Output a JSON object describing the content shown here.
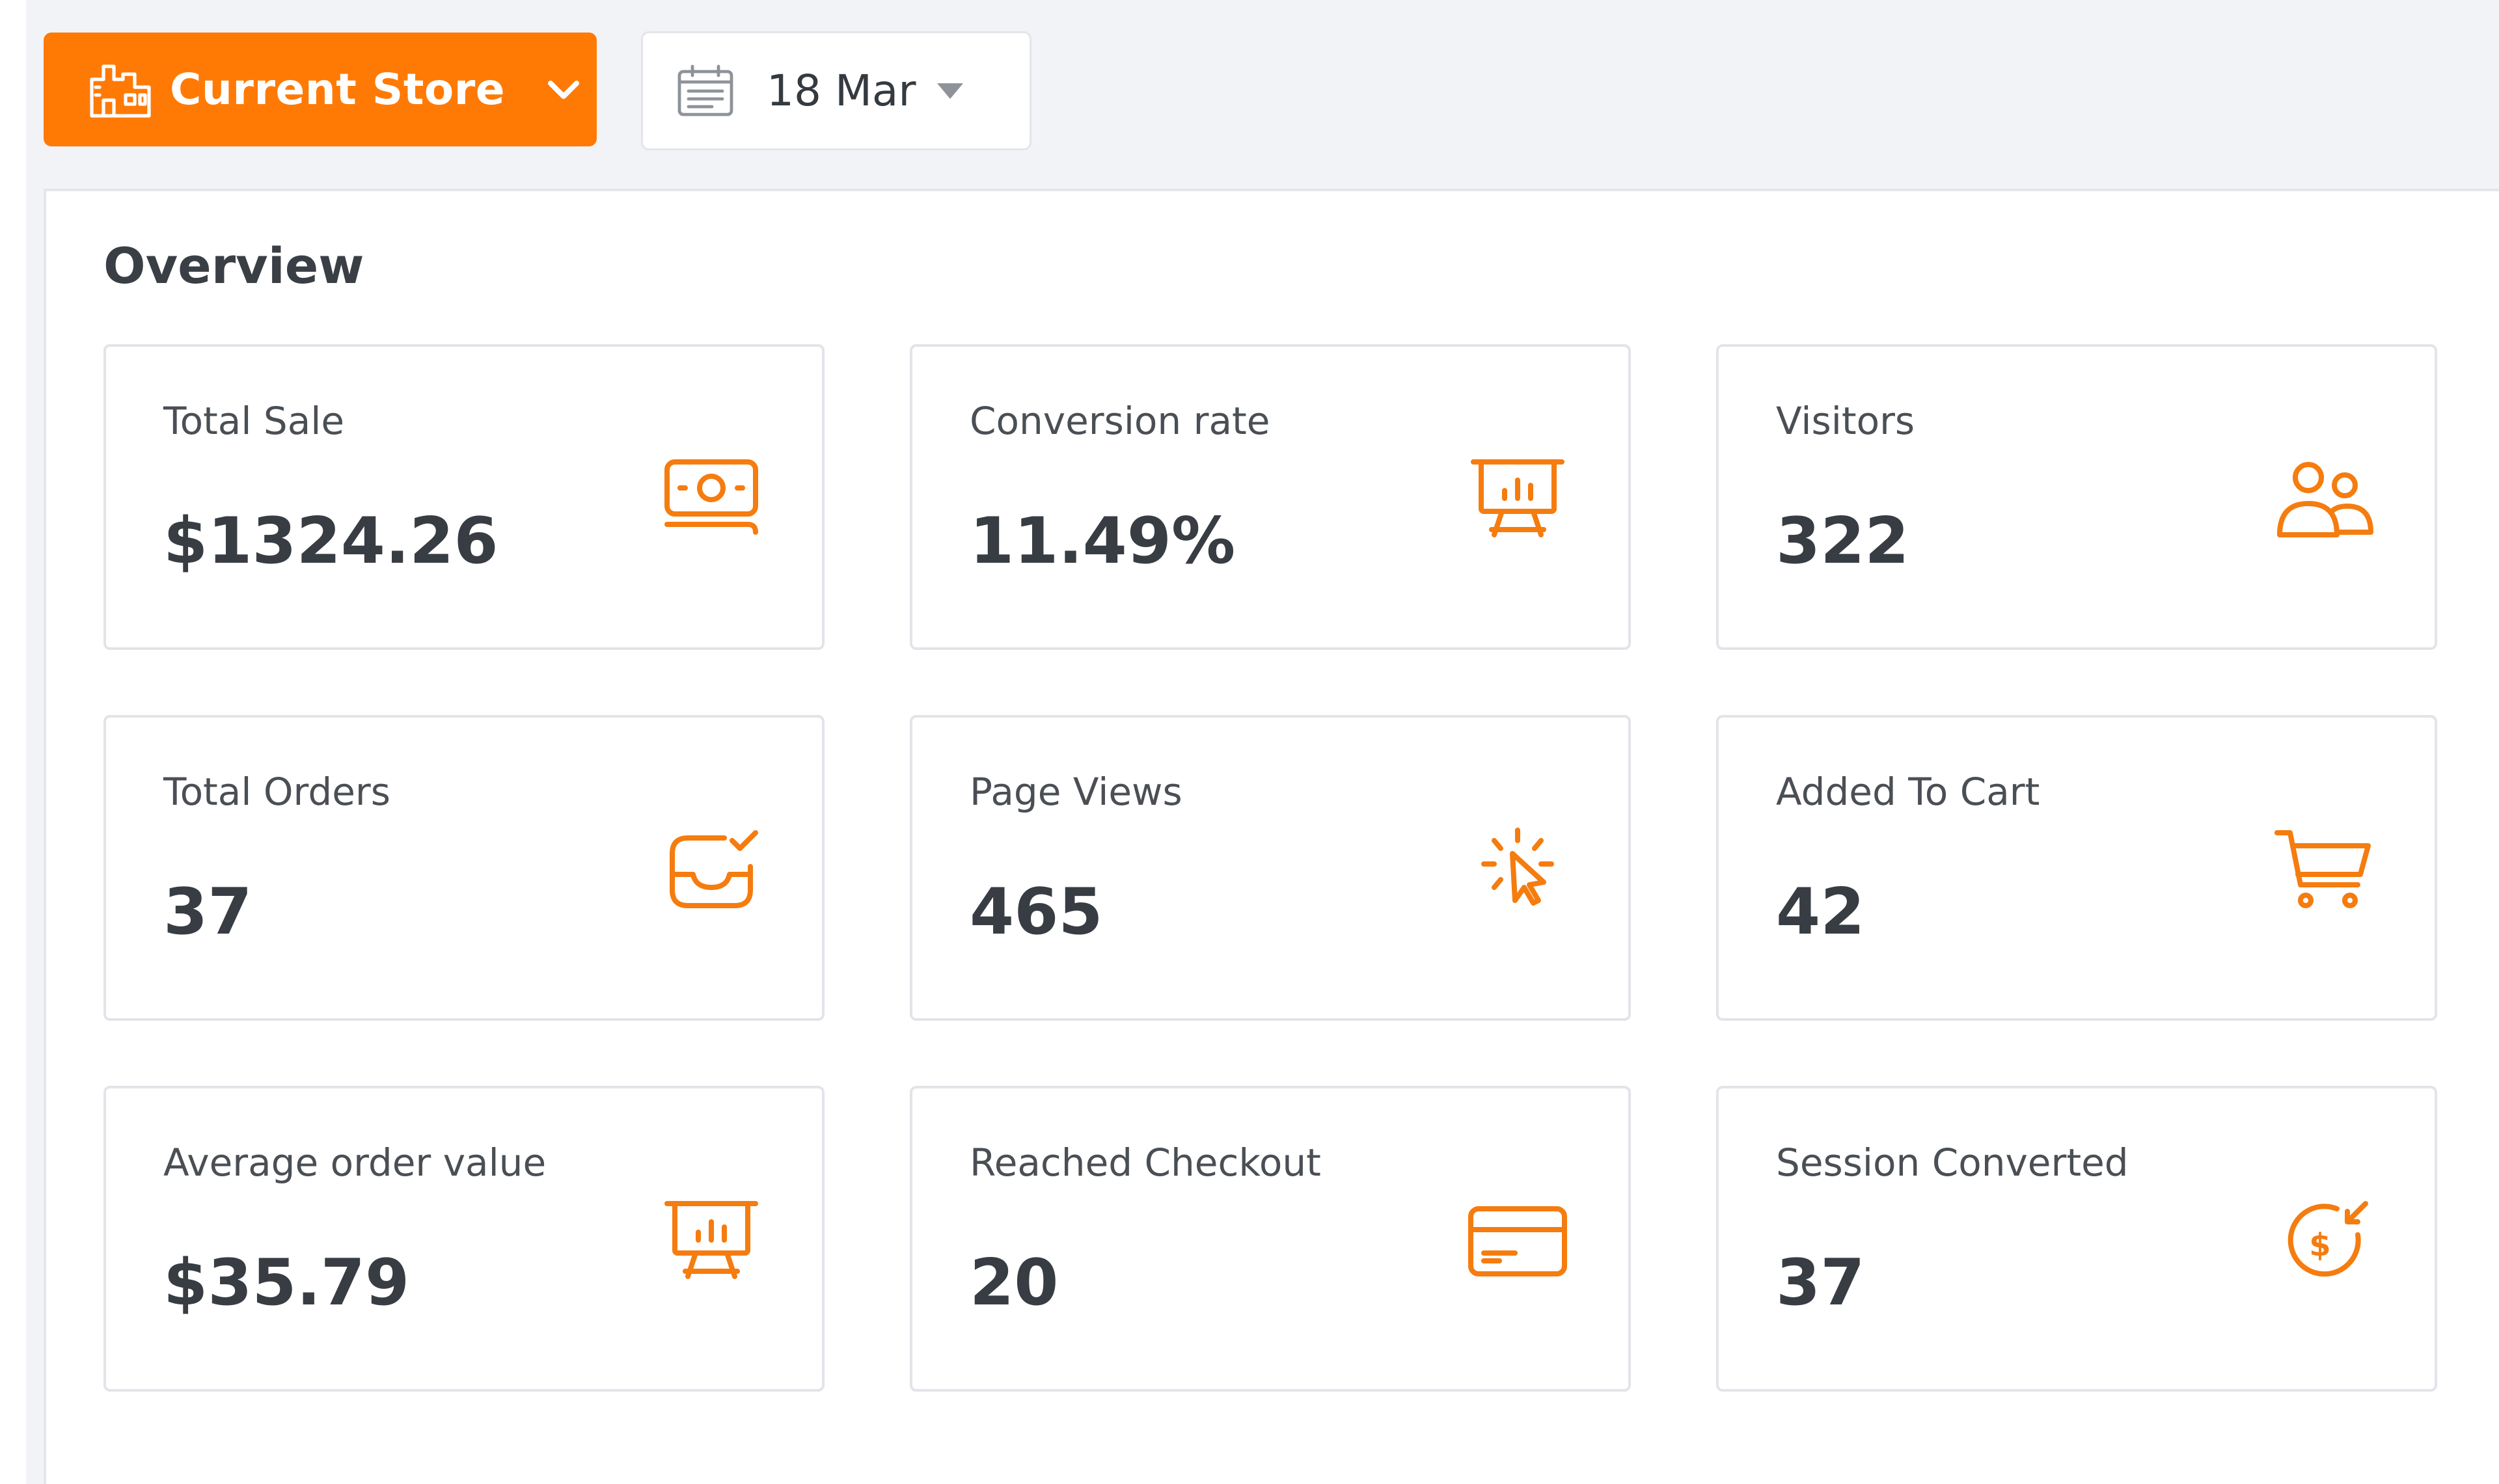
{
  "toolbar": {
    "store_label": "Current Store",
    "date_label": "18 Mar"
  },
  "overview": {
    "title": "Overview",
    "cards": [
      {
        "label": "Total Sale",
        "value": "$1324.26",
        "icon": "money-icon"
      },
      {
        "label": "Conversion rate",
        "value": "11.49%",
        "icon": "presentation-chart-icon"
      },
      {
        "label": "Visitors",
        "value": "322",
        "icon": "users-icon"
      },
      {
        "label": "Total Orders",
        "value": "37",
        "icon": "inbox-check-icon"
      },
      {
        "label": "Page Views",
        "value": "465",
        "icon": "cursor-click-icon"
      },
      {
        "label": "Added To Cart",
        "value": "42",
        "icon": "cart-icon"
      },
      {
        "label": "Average order value",
        "value": "$35.79",
        "icon": "presentation-chart-icon"
      },
      {
        "label": "Reached Checkout",
        "value": "20",
        "icon": "credit-card-icon"
      },
      {
        "label": "Session Converted",
        "value": "37",
        "icon": "dollar-return-icon"
      }
    ]
  },
  "colors": {
    "accent": "#ff7a05",
    "text": "#383d44",
    "border": "#e2e4e9",
    "background": "#f2f3f6"
  }
}
